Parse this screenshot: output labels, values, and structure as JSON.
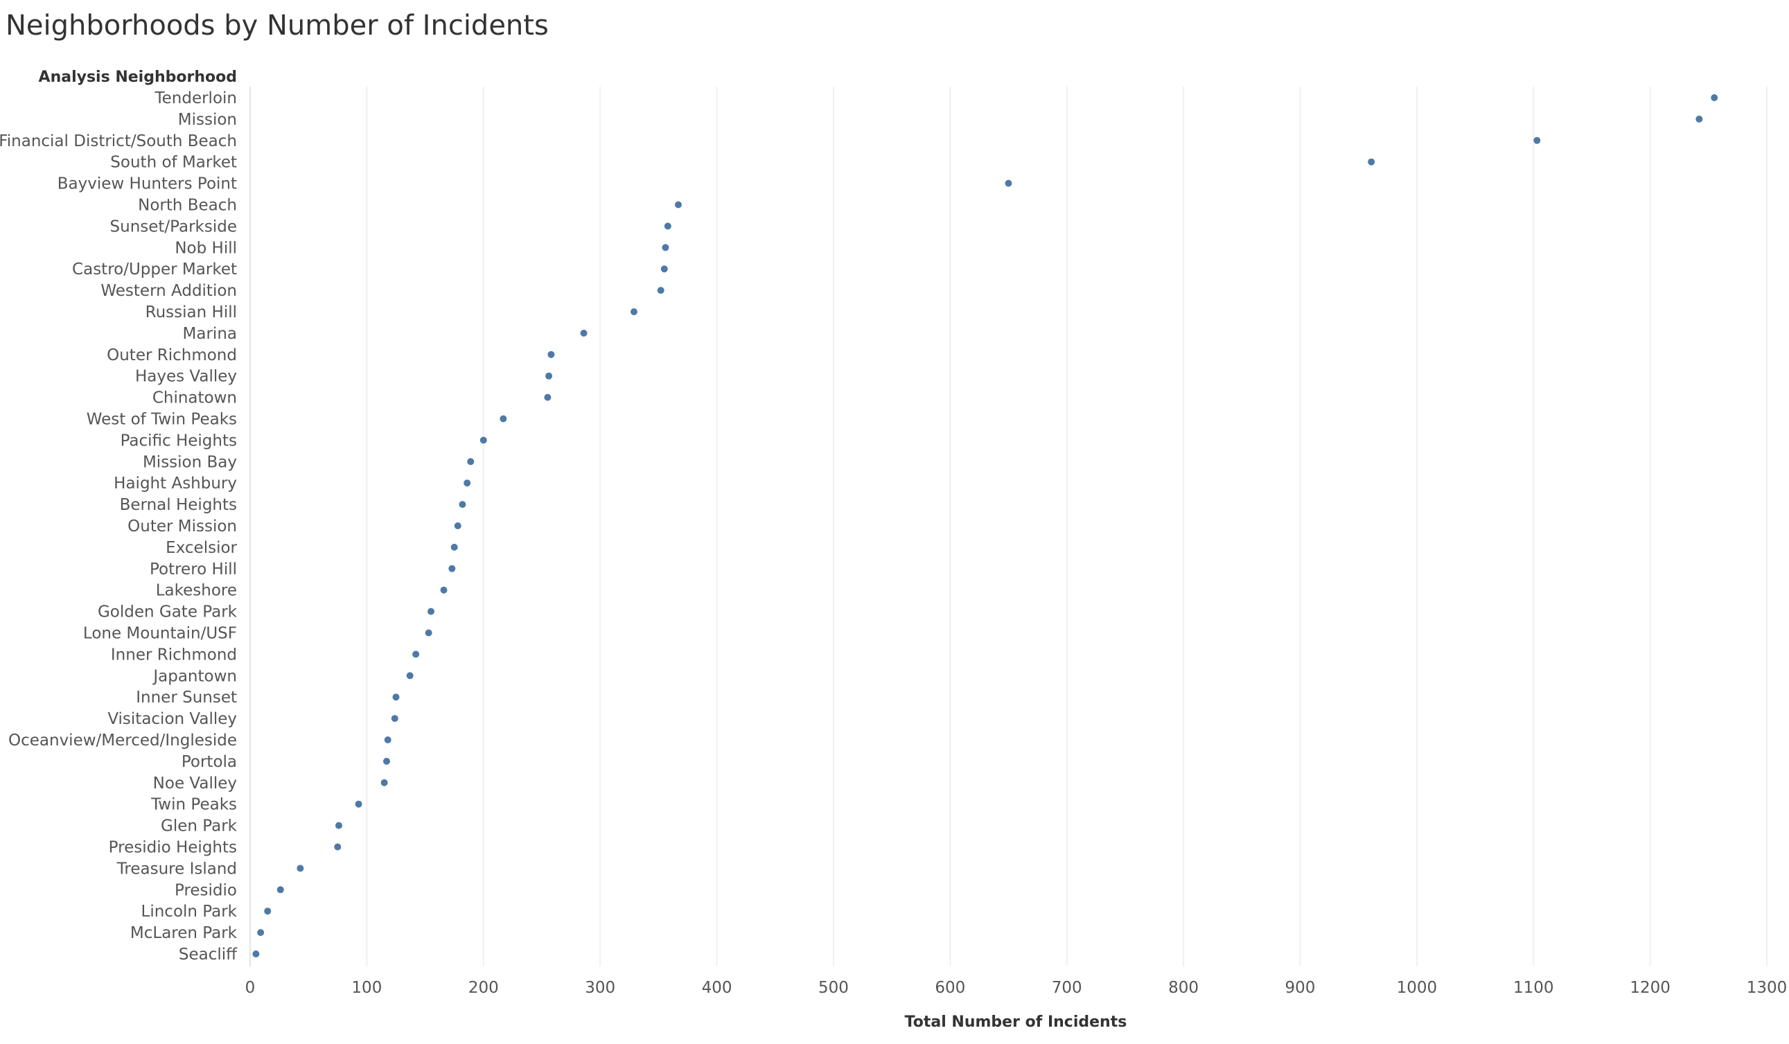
{
  "chart_data": {
    "type": "scatter",
    "title": "Neighborhoods by Number of Incidents",
    "row_header": "Analysis Neighborhood",
    "xlabel": "Total Number of Incidents",
    "xlim": [
      0,
      1300
    ],
    "xticks": [
      0,
      100,
      200,
      300,
      400,
      500,
      600,
      700,
      800,
      900,
      1000,
      1100,
      1200,
      1300
    ],
    "grid": true,
    "mark_color": "#4e79a7",
    "categories": [
      "Tenderloin",
      "Mission",
      "Financial District/South Beach",
      "South of Market",
      "Bayview Hunters Point",
      "North Beach",
      "Sunset/Parkside",
      "Nob Hill",
      "Castro/Upper Market",
      "Western Addition",
      "Russian Hill",
      "Marina",
      "Outer Richmond",
      "Hayes Valley",
      "Chinatown",
      "West of Twin Peaks",
      "Pacific Heights",
      "Mission Bay",
      "Haight Ashbury",
      "Bernal Heights",
      "Outer Mission",
      "Excelsior",
      "Potrero Hill",
      "Lakeshore",
      "Golden Gate Park",
      "Lone Mountain/USF",
      "Inner Richmond",
      "Japantown",
      "Inner Sunset",
      "Visitacion Valley",
      "Oceanview/Merced/Ingleside",
      "Portola",
      "Noe Valley",
      "Twin Peaks",
      "Glen Park",
      "Presidio Heights",
      "Treasure Island",
      "Presidio",
      "Lincoln Park",
      "McLaren Park",
      "Seacliff"
    ],
    "values": [
      1255,
      1242,
      1103,
      961,
      650,
      367,
      358,
      356,
      355,
      352,
      329,
      286,
      258,
      256,
      255,
      217,
      200,
      189,
      186,
      182,
      178,
      175,
      173,
      166,
      155,
      153,
      142,
      137,
      125,
      124,
      118,
      117,
      115,
      93,
      76,
      75,
      43,
      26,
      15,
      9,
      5
    ]
  }
}
